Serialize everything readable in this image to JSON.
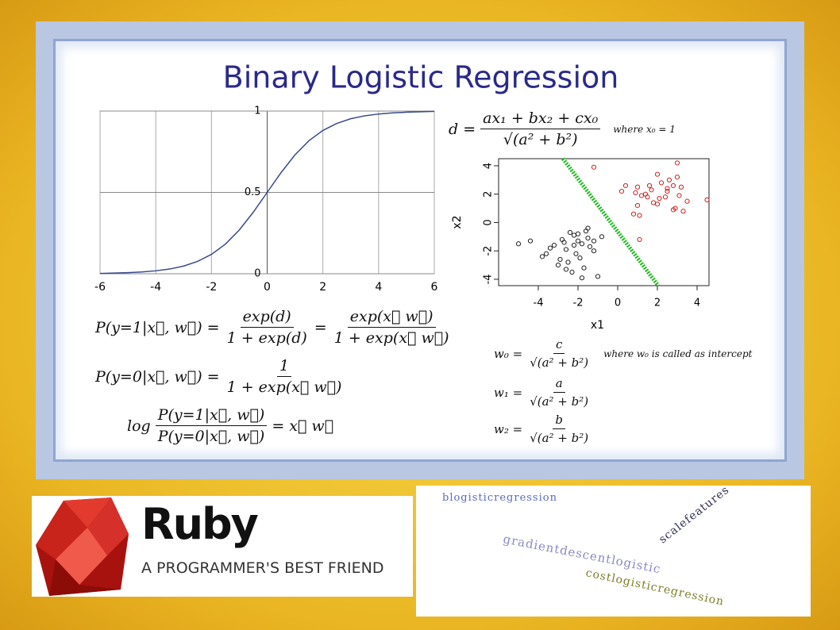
{
  "title": "Binary Logistic Regression",
  "chart_data": [
    {
      "type": "line",
      "color": "#3a4a8c",
      "x": [
        -6,
        -5.5,
        -5,
        -4.5,
        -4,
        -3.5,
        -3,
        -2.5,
        -2,
        -1.5,
        -1,
        -0.5,
        0,
        0.5,
        1,
        1.5,
        2,
        2.5,
        3,
        3.5,
        4,
        4.5,
        5,
        5.5,
        6
      ],
      "values": [
        0.002,
        0.004,
        0.007,
        0.011,
        0.018,
        0.029,
        0.047,
        0.076,
        0.119,
        0.182,
        0.269,
        0.378,
        0.5,
        0.622,
        0.731,
        0.818,
        0.881,
        0.924,
        0.953,
        0.971,
        0.982,
        0.989,
        0.993,
        0.996,
        0.998
      ],
      "xlim": [
        -6,
        6
      ],
      "ylim": [
        0,
        1
      ],
      "xticks": [
        -6,
        -4,
        -2,
        0,
        2,
        4,
        6
      ],
      "yticks": [
        0,
        0.5,
        1
      ],
      "grid": true
    },
    {
      "type": "scatter",
      "x_label": "x1",
      "y_label": "x2",
      "xlim": [
        -6,
        4.6
      ],
      "ylim": [
        -4.45,
        4.5
      ],
      "xticks": [
        -4,
        -2,
        0,
        2,
        4
      ],
      "yticks": [
        -4,
        -2,
        0,
        2,
        4
      ],
      "series": [
        {
          "color": "#cc2222",
          "x": [
            2.5,
            1.0,
            2.0,
            3.0,
            1.5,
            2.8,
            3.2,
            1.8,
            0.2,
            0.8,
            1.2,
            2.2,
            2.6,
            3.5,
            4.5,
            1.0,
            1.6,
            2.4,
            3.0,
            2.9,
            0.4,
            1.4,
            2.0,
            2.8,
            3.3,
            0.9,
            1.1,
            2.1,
            3.1,
            1.7,
            1.1,
            2.5,
            -1.2
          ],
          "values": [
            2.2,
            2.5,
            3.4,
            4.2,
            1.8,
            2.6,
            2.5,
            1.4,
            2.2,
            0.6,
            1.9,
            2.8,
            3.0,
            1.5,
            1.6,
            1.2,
            2.6,
            1.8,
            3.2,
            1.0,
            2.6,
            2.0,
            1.3,
            0.9,
            0.8,
            2.1,
            0.5,
            1.7,
            1.9,
            2.3,
            -1.2,
            2.4,
            3.9
          ]
        },
        {
          "color": "#222222",
          "x": [
            -5,
            -4.4,
            -3.6,
            -3.2,
            -2.8,
            -2.5,
            -2.2,
            -2.0,
            -1.8,
            -1.5,
            -1.2,
            -0.8,
            -2.6,
            -2.3,
            -1.9,
            -1.6,
            -3.0,
            -2.7,
            -2.1,
            -1.7,
            -1.4,
            -2.4,
            -1.8,
            -2.9,
            -3.4,
            -2.0,
            -1.0,
            -2.6,
            -1.2,
            -2.2,
            -3.8,
            -1.5
          ],
          "values": [
            -1.5,
            -1.3,
            -2.2,
            -1.6,
            -1.2,
            -2.8,
            -0.9,
            -0.8,
            -1.5,
            -1.1,
            -2.0,
            -1.0,
            -1.9,
            -3.5,
            -2.5,
            -0.6,
            -3.0,
            -1.4,
            -2.2,
            -3.2,
            -1.7,
            -0.7,
            -3.9,
            -2.6,
            -1.8,
            -1.3,
            -3.8,
            -3.3,
            -1.3,
            -1.6,
            -2.4,
            -0.4
          ]
        }
      ],
      "boundary": {
        "color": "#22bb22",
        "x": [
          -2.76,
          2.04
        ],
        "values": [
          4.5,
          -4.45
        ]
      }
    }
  ],
  "distance_equation": {
    "terms": [
      "d =",
      {
        "num": "ax₁ + bx₂ + cx₀",
        "den": "√(a² + b²)"
      },
      "where x₀ = 1"
    ]
  },
  "equations": [
    {
      "terms": [
        "P(y=1|x⃗, w⃗) =",
        {
          "num": "exp(d)",
          "den": "1 + exp(d)"
        },
        "=",
        {
          "num": "exp(x⃗ w⃗)",
          "den": "1 + exp(x⃗ w⃗)"
        }
      ]
    },
    {
      "terms": [
        "P(y=0|x⃗, w⃗) =",
        {
          "num": "1",
          "den": "1 + exp(x⃗ w⃗)"
        }
      ]
    },
    {
      "terms": [
        "log",
        {
          "num": "P(y=1|x⃗, w⃗)",
          "den": "P(y=0|x⃗, w⃗)"
        },
        "= x⃗ w⃗"
      ]
    }
  ],
  "weights": [
    {
      "terms": [
        "w₀ =",
        {
          "num": "c",
          "den": "√(a² + b²)"
        },
        "where w₀ is called as intercept"
      ]
    },
    {
      "terms": [
        "w₁ =",
        {
          "num": "a",
          "den": "√(a² + b²)"
        }
      ]
    },
    {
      "terms": [
        "w₂ =",
        {
          "num": "b",
          "den": "√(a² + b²)"
        }
      ]
    }
  ],
  "logo": {
    "name": "Ruby",
    "tagline": "A PROGRAMMER'S BEST FRIEND"
  },
  "word_cloud": [
    "blogisticregression",
    "scalefeatures",
    "gradientdescentlogistic",
    "costlogisticregression"
  ]
}
